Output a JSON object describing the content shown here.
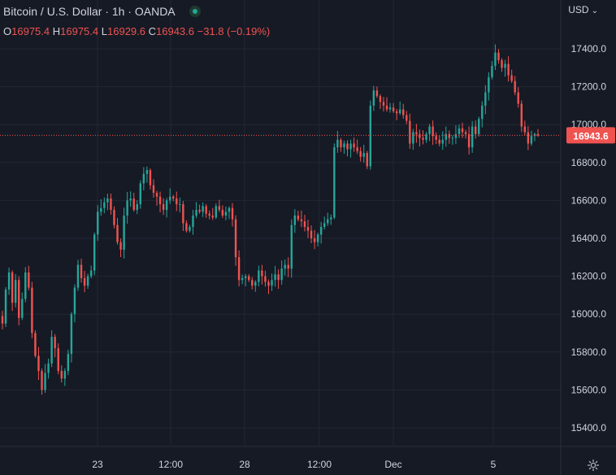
{
  "header": {
    "symbol": "Bitcoin / U.S. Dollar",
    "sep1": "·",
    "interval": "1h",
    "sep2": "·",
    "source": "OANDA"
  },
  "ohlc": {
    "o_label": "O",
    "o": "16975.4",
    "h_label": "H",
    "h": "16975.4",
    "l_label": "L",
    "l": "16929.6",
    "c_label": "C",
    "c": "16943.6",
    "change": "−31.8 (−0.19%)"
  },
  "currency": "USD",
  "colors": {
    "background": "#161a25",
    "grid": "#232735",
    "up": "#26a69a",
    "down": "#ef5350",
    "text": "#d1d4dc"
  },
  "chart_data": {
    "type": "candlestick",
    "title": "Bitcoin / U.S. Dollar · 1h · OANDA",
    "ylabel": "USD",
    "ylim": [
      15300,
      17500
    ],
    "y_ticks": [
      "15400.0",
      "15600.0",
      "15800.0",
      "16000.0",
      "16200.0",
      "16400.0",
      "16600.0",
      "16800.0",
      "17000.0",
      "17200.0",
      "17400.0"
    ],
    "x_ticks": [
      "23",
      "12:00",
      "28",
      "12:00",
      "Dec",
      "5"
    ],
    "last_price": "16943.6",
    "grid": true,
    "closes": [
      15950,
      16130,
      16220,
      16060,
      16180,
      15980,
      16080,
      16220,
      16140,
      15900,
      15780,
      15700,
      15600,
      15690,
      15740,
      15880,
      15820,
      15700,
      15660,
      15700,
      15790,
      16000,
      16140,
      16260,
      16190,
      16150,
      16200,
      16230,
      16420,
      16540,
      16560,
      16590,
      16610,
      16550,
      16470,
      16380,
      16340,
      16520,
      16600,
      16610,
      16550,
      16580,
      16690,
      16740,
      16760,
      16680,
      16640,
      16620,
      16580,
      16550,
      16600,
      16620,
      16610,
      16580,
      16580,
      16480,
      16440,
      16460,
      16520,
      16550,
      16540,
      16570,
      16530,
      16520,
      16510,
      16570,
      16550,
      16520,
      16540,
      16560,
      16500,
      16300,
      16180,
      16190,
      16200,
      16180,
      16150,
      16170,
      16230,
      16200,
      16170,
      16150,
      16180,
      16210,
      16180,
      16240,
      16260,
      16240,
      16470,
      16520,
      16500,
      16490,
      16460,
      16440,
      16400,
      16380,
      16420,
      16460,
      16480,
      16500,
      16510,
      16880,
      16920,
      16880,
      16900,
      16870,
      16900,
      16880,
      16860,
      16830,
      16850,
      16780,
      17100,
      17180,
      17150,
      17120,
      17100,
      17080,
      17090,
      17070,
      17060,
      17080,
      17050,
      17020,
      16900,
      16960,
      16950,
      16930,
      16920,
      16950,
      16990,
      16940,
      16920,
      16900,
      16920,
      16950,
      16930,
      16930,
      16950,
      16980,
      16960,
      16950,
      16880,
      16990,
      16950,
      17030,
      17100,
      17170,
      17250,
      17310,
      17380,
      17340,
      17300,
      17320,
      17260,
      17230,
      17170,
      17110,
      16990,
      16960,
      16900,
      16940,
      16950,
      16943.6
    ]
  }
}
